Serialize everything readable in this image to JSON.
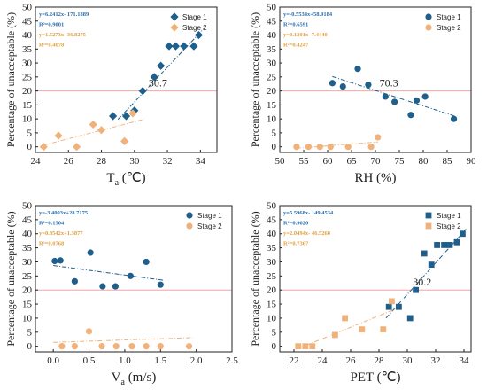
{
  "colors": {
    "stage1": "#1f5f8b",
    "stage2": "#f0b27a",
    "threshold": "#f4a6a6",
    "text1": "#2a6fb0",
    "text2": "#e3a03c"
  },
  "chart_data": [
    {
      "type": "scatter",
      "marker": "diamond",
      "xlabel": "T",
      "xlabel_sub": "a",
      "xlabel_unit": " (℃)",
      "ylabel": "Percentage of unacceptable (%)",
      "xlim": [
        24,
        35
      ],
      "ylim": [
        -2,
        50
      ],
      "xticks": [
        24,
        26,
        28,
        30,
        32,
        34
      ],
      "yticks": [
        0,
        5,
        10,
        15,
        20,
        25,
        30,
        35,
        40,
        45,
        50
      ],
      "threshold": 20,
      "annotation": {
        "text": "30.7",
        "x": 30.7,
        "y": 20
      },
      "equations": {
        "stage1": [
          "y=6.2412x- 171.1889",
          "R²=0.9001"
        ],
        "stage2": [
          "y=1.5273x- 36.8275",
          "R²=0.4078"
        ]
      },
      "legend": [
        "Stage 1",
        "Stage 2"
      ],
      "legend_position": "top-right",
      "series": [
        {
          "name": "Stage 1",
          "x": [
            28.7,
            29.5,
            30.0,
            30.5,
            31.2,
            31.6,
            32.1,
            32.5,
            33.0,
            33.6,
            33.9
          ],
          "y": [
            11,
            11,
            13,
            20,
            25,
            29,
            36,
            36,
            36,
            36,
            40
          ]
        },
        {
          "name": "Stage 2",
          "x": [
            24.5,
            25.4,
            26.5,
            27.5,
            28.0,
            29.4,
            29.9
          ],
          "y": [
            0,
            4,
            0,
            8,
            6,
            2,
            12
          ]
        }
      ],
      "fits": [
        {
          "series": "Stage 1",
          "x": [
            29.0,
            34.2
          ]
        },
        {
          "series": "Stage 2",
          "x": [
            24.5,
            30.6
          ]
        }
      ]
    },
    {
      "type": "scatter",
      "marker": "circle",
      "xlabel": "RH (%)",
      "ylabel": "Percentage of unacceptable (%)",
      "xlim": [
        50,
        90
      ],
      "ylim": [
        -2,
        50
      ],
      "xticks": [
        50,
        55,
        60,
        65,
        70,
        75,
        80,
        85,
        90
      ],
      "yticks": [
        0,
        5,
        10,
        15,
        20,
        25,
        30,
        35,
        40,
        45,
        50
      ],
      "threshold": 20,
      "annotation": {
        "text": "70.3",
        "x": 70.3,
        "y": 20
      },
      "equations": {
        "stage1": [
          "y=-0.5534x+58.9184",
          "R²=0.6591"
        ],
        "stage2": [
          "y=0.1301x- 7.4440",
          "R²=0.4247"
        ]
      },
      "legend": [
        "Stage 1",
        "Stage 2"
      ],
      "legend_position": "top-right",
      "series": [
        {
          "name": "Stage 1",
          "x": [
            61.0,
            63.2,
            66.3,
            68.5,
            72.1,
            74.0,
            77.4,
            78.6,
            80.4,
            86.4
          ],
          "y": [
            22.8,
            21.6,
            27.9,
            22.2,
            18.0,
            16.1,
            11.4,
            16.6,
            18.0,
            10.0
          ]
        },
        {
          "name": "Stage 2",
          "x": [
            53.5,
            56.0,
            58.4,
            60.6,
            64.3,
            69.1,
            70.5
          ],
          "y": [
            0,
            0,
            0,
            0,
            0,
            0,
            3.4
          ]
        }
      ],
      "fits": [
        {
          "series": "Stage 1",
          "x": [
            61,
            86.4
          ]
        },
        {
          "series": "Stage 2",
          "x": [
            53.5,
            70.5
          ]
        }
      ]
    },
    {
      "type": "scatter",
      "marker": "circle",
      "xlabel": "V",
      "xlabel_sub": "a",
      "xlabel_unit": " (m/s)",
      "ylabel": "Percentage of unacceptable (%)",
      "xlim": [
        -0.25,
        2.5
      ],
      "ylim": [
        -2,
        50
      ],
      "xticks": [
        0.0,
        0.5,
        1.0,
        1.5,
        2.0,
        2.5
      ],
      "yticks": [
        0,
        5,
        10,
        15,
        20,
        25,
        30,
        35,
        40,
        45,
        50
      ],
      "threshold": 20,
      "equations": {
        "stage1": [
          "y=-3.4003x+28.7175",
          "R²=0.1504"
        ],
        "stage2": [
          "y=0.8542x+1.3877",
          "R²=0.0768"
        ]
      },
      "legend": [
        "Stage 1",
        "Stage 2"
      ],
      "legend_position": "top-right",
      "series": [
        {
          "name": "Stage 1",
          "x": [
            0.02,
            0.1,
            0.3,
            0.52,
            0.69,
            0.87,
            1.08,
            1.3,
            1.5
          ],
          "y": [
            30.3,
            30.5,
            23.1,
            33.3,
            21.3,
            21.3,
            25,
            30,
            21.9
          ]
        },
        {
          "name": "Stage 2",
          "x": [
            0.12,
            0.3,
            0.5,
            0.68,
            0.88,
            1.1,
            1.3,
            1.5,
            1.9
          ],
          "y": [
            0,
            0,
            5.3,
            0,
            0,
            0,
            0,
            0,
            0
          ]
        }
      ],
      "fits": [
        {
          "series": "Stage 1",
          "x": [
            0,
            1.55
          ]
        },
        {
          "series": "Stage 2",
          "x": [
            0,
            1.95
          ]
        }
      ]
    },
    {
      "type": "scatter",
      "marker": "square",
      "xlabel": "PET (℃)",
      "ylabel": "Percentage of unacceptable (%)",
      "xlim": [
        21,
        34.5
      ],
      "ylim": [
        -2,
        50
      ],
      "xticks": [
        22,
        24,
        26,
        28,
        30,
        32,
        34
      ],
      "yticks": [
        0,
        5,
        10,
        15,
        20,
        25,
        30,
        35,
        40,
        45,
        50
      ],
      "threshold": 20,
      "annotation": {
        "text": "30.2",
        "x": 30.2,
        "y": 20
      },
      "equations": {
        "stage1": [
          "y=5.5968x- 149.4534",
          "R²=0.9020"
        ],
        "stage2": [
          "y=2.0494x- 46.5260",
          "R²=0.7367"
        ]
      },
      "legend": [
        "Stage 1",
        "Stage 2"
      ],
      "legend_position": "top-right",
      "series": [
        {
          "name": "Stage 1",
          "x": [
            28.7,
            29.4,
            30.2,
            30.6,
            31.2,
            31.7,
            32.1,
            32.6,
            33.0,
            33.5,
            33.9
          ],
          "y": [
            14,
            14,
            10,
            20,
            33,
            29,
            36,
            36,
            36,
            37,
            40
          ]
        },
        {
          "name": "Stage 2",
          "x": [
            22.3,
            22.8,
            23.3,
            24.9,
            25.6,
            26.8,
            28.3,
            28.9
          ],
          "y": [
            0,
            0,
            0,
            4,
            10,
            6,
            6,
            16
          ]
        }
      ],
      "fits": [
        {
          "series": "Stage 1",
          "x": [
            28.5,
            34.2
          ]
        },
        {
          "series": "Stage 2",
          "x": [
            22.3,
            29.4
          ]
        }
      ]
    }
  ]
}
